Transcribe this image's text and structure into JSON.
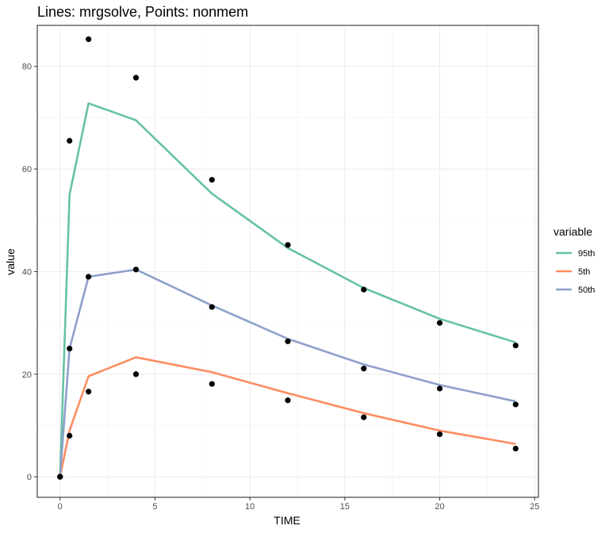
{
  "chart_data": {
    "type": "line",
    "title": "Lines: mrgsolve, Points: nonmem",
    "xlabel": "TIME",
    "ylabel": "value",
    "xlim": [
      -1.2,
      25.2
    ],
    "ylim": [
      -4,
      88
    ],
    "x_ticks": [
      0,
      5,
      10,
      15,
      20,
      25
    ],
    "y_ticks": [
      0,
      20,
      40,
      60,
      80
    ],
    "grid": true,
    "legend": {
      "title": "variable",
      "position": "right"
    },
    "x": [
      0,
      0.5,
      1.5,
      4,
      8,
      12,
      16,
      20,
      24
    ],
    "series": [
      {
        "name": "95th",
        "color": "#66c2a5",
        "values": [
          0,
          55.0,
          72.8,
          69.5,
          55.2,
          44.6,
          36.8,
          30.8,
          26.2
        ],
        "points": [
          0,
          65.5,
          85.3,
          77.8,
          57.9,
          45.2,
          36.5,
          30.0,
          25.6
        ]
      },
      {
        "name": "5th",
        "color": "#fc8d62",
        "values": [
          0,
          9.0,
          19.6,
          23.3,
          20.4,
          16.3,
          12.4,
          9.0,
          6.4
        ],
        "points": [
          0,
          8.0,
          16.6,
          20.0,
          18.1,
          14.9,
          11.6,
          8.3,
          5.5
        ]
      },
      {
        "name": "50th",
        "color": "#8da0cb",
        "values": [
          0,
          25.0,
          39.0,
          40.4,
          33.4,
          26.9,
          21.9,
          17.9,
          14.7
        ],
        "points": [
          0,
          25.0,
          39.0,
          40.4,
          33.1,
          26.4,
          21.1,
          17.2,
          14.1
        ]
      }
    ]
  }
}
